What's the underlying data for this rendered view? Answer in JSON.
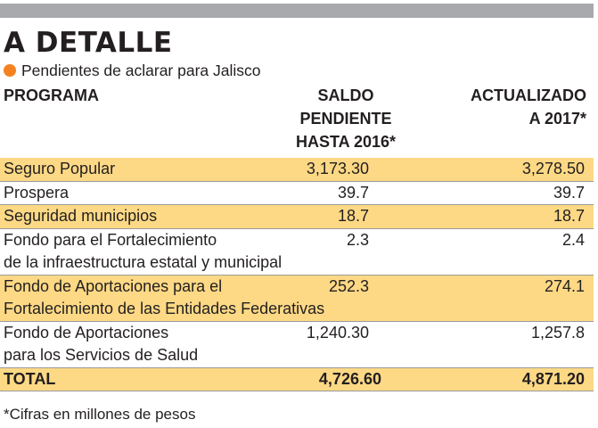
{
  "header": {
    "title": "A DETALLE",
    "subtitle": "Pendientes de aclarar para Jalisco"
  },
  "columns": {
    "programa": "PROGRAMA",
    "saldo_lines": [
      "SALDO",
      "PENDIENTE",
      "HASTA 2016*"
    ],
    "actualizado_lines": [
      "ACTUALIZADO",
      "A 2017*"
    ]
  },
  "rows": [
    {
      "programa": [
        "Seguro Popular"
      ],
      "saldo": "3,173.30",
      "actualizado": "3,278.50"
    },
    {
      "programa": [
        "Prospera"
      ],
      "saldo": "39.7",
      "actualizado": "39.7"
    },
    {
      "programa": [
        "Seguridad municipios"
      ],
      "saldo": "18.7",
      "actualizado": "18.7"
    },
    {
      "programa": [
        "Fondo para el Fortalecimiento",
        "de la infraestructura estatal y municipal"
      ],
      "saldo": "2.3",
      "actualizado": "2.4"
    },
    {
      "programa": [
        "Fondo de Aportaciones para el",
        "Fortalecimiento de las Entidades Federativas"
      ],
      "saldo": "252.3",
      "actualizado": "274.1"
    },
    {
      "programa": [
        "Fondo de Aportaciones",
        "para los Servicios de Salud"
      ],
      "saldo": "1,240.30",
      "actualizado": "1,257.8"
    }
  ],
  "total": {
    "label": "TOTAL",
    "saldo": "4,726.60",
    "actualizado": "4,871.20"
  },
  "footnote": "*Cifras en millones de pesos",
  "colors": {
    "accent_dot": "#f58220",
    "row_highlight": "#fdd985",
    "top_bar": "#a7a9ac"
  }
}
